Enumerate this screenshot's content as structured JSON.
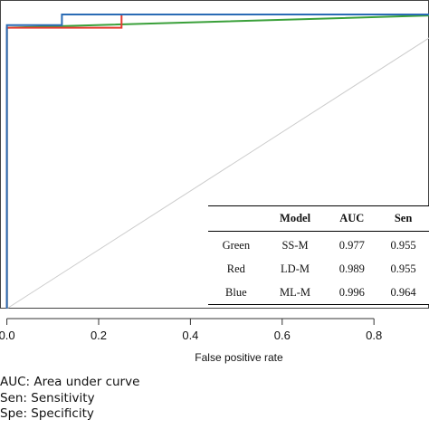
{
  "chart_data": {
    "type": "line",
    "xlabel": "False positive rate",
    "ylabel": "",
    "title": "",
    "xlim": [
      -0.015,
      0.92
    ],
    "ylim": [
      0,
      1
    ],
    "xticks": [
      0.0,
      0.2,
      0.4,
      0.6,
      0.8
    ],
    "xtick_labels": [
      "0.0",
      "0.2",
      "0.4",
      "0.6",
      "0.8"
    ],
    "grid": false,
    "series": [
      {
        "color": "#3aa03a",
        "x": [
          0,
          0,
          1
        ],
        "y": [
          0,
          0.955,
          1
        ]
      },
      {
        "color": "#e53b30",
        "x": [
          0,
          0,
          0.25,
          0.25,
          1
        ],
        "y": [
          0,
          0.955,
          0.955,
          1,
          1
        ]
      },
      {
        "color": "#2a6bb5",
        "x": [
          0,
          0,
          0.12,
          0.12,
          1
        ],
        "y": [
          0,
          0.964,
          0.964,
          1,
          1
        ]
      }
    ],
    "reference_line": {
      "color": "#cccccc",
      "x": [
        0,
        1
      ],
      "y": [
        0,
        1
      ]
    }
  },
  "table": {
    "headers": [
      "",
      "Model",
      "AUC",
      "Sen"
    ],
    "rows": [
      [
        "Green",
        "SS-M",
        "0.977",
        "0.955"
      ],
      [
        "Red",
        "LD-M",
        "0.989",
        "0.955"
      ],
      [
        "Blue",
        "ML-M",
        "0.996",
        "0.964"
      ]
    ]
  },
  "notes": [
    "AUC: Area under curve",
    "Sen: Sensitivity",
    "Spe: Specificity"
  ]
}
